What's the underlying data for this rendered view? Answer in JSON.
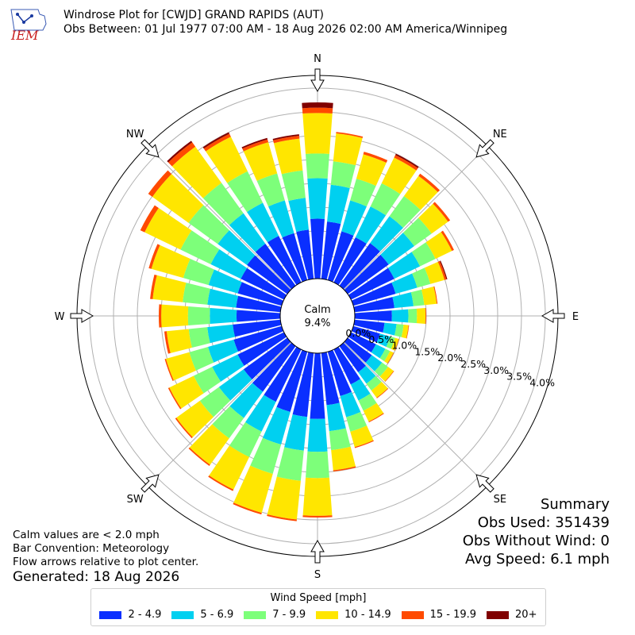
{
  "header": {
    "logo_text": "IEM",
    "title_line1": "Windrose Plot for [CWJD] GRAND RAPIDS (AUT)",
    "title_line2": "Obs Between: 01 Jul 1977 07:00 AM - 18 Aug 2026 02:00 AM America/Winnipeg"
  },
  "summary": {
    "heading": "Summary",
    "obs_used": "Obs Used: 351439",
    "obs_without_wind": "Obs Without Wind: 0",
    "avg_speed": "Avg Speed: 6.1 mph"
  },
  "notes": {
    "calm": "Calm values are < 2.0 mph",
    "convention": "Bar Convention: Meteorology",
    "arrows": "Flow arrows relative to plot center.",
    "generated": "Generated: 18 Aug 2026"
  },
  "chart_data": {
    "type": "windrose",
    "center_label": "Calm",
    "center_value": "9.4%",
    "directions": [
      "N",
      "NE",
      "E",
      "SE",
      "S",
      "SW",
      "W",
      "NW"
    ],
    "sector_angles_deg": [
      0,
      10,
      20,
      30,
      40,
      50,
      60,
      70,
      80,
      90,
      100,
      110,
      120,
      130,
      140,
      150,
      160,
      170,
      180,
      190,
      200,
      210,
      220,
      230,
      240,
      250,
      260,
      270,
      280,
      290,
      300,
      310,
      320,
      330,
      340,
      350
    ],
    "radial_ticks": [
      "0.0%",
      "0.5%",
      "1.0%",
      "1.5%",
      "2.0%",
      "2.5%",
      "3.0%",
      "3.5%",
      "4.0%"
    ],
    "radial_tick_values": [
      0.0,
      0.5,
      1.0,
      1.5,
      2.0,
      2.5,
      3.0,
      3.5,
      4.0
    ],
    "rmax": 4.0,
    "legend_title": "Wind Speed [mph]",
    "bins": [
      {
        "name": "2 - 4.9",
        "color": "#0a2fff"
      },
      {
        "name": "5 - 6.9",
        "color": "#00d0f0"
      },
      {
        "name": "7 - 9.9",
        "color": "#7dff7a"
      },
      {
        "name": "10 - 14.9",
        "color": "#ffe600"
      },
      {
        "name": "15 - 19.9",
        "color": "#ff4a00"
      },
      {
        "name": "20+",
        "color": "#800000"
      }
    ],
    "totals": [
      3.7,
      3.1,
      2.8,
      3.0,
      2.9,
      2.65,
      2.4,
      2.05,
      1.75,
      1.5,
      1.15,
      1.0,
      1.0,
      1.2,
      1.35,
      1.7,
      2.1,
      2.5,
      3.45,
      3.55,
      3.55,
      3.3,
      3.1,
      2.9,
      2.7,
      2.55,
      2.45,
      2.55,
      2.75,
      2.9,
      3.35,
      3.6,
      3.75,
      3.5,
      3.1,
      3.05
    ],
    "fractions": [
      [
        0.34,
        0.23,
        0.14,
        0.23,
        0.03,
        0.03
      ],
      [
        0.39,
        0.25,
        0.16,
        0.19,
        0.01,
        0.0
      ],
      [
        0.38,
        0.24,
        0.17,
        0.19,
        0.02,
        0.0
      ],
      [
        0.35,
        0.24,
        0.18,
        0.2,
        0.02,
        0.01
      ],
      [
        0.38,
        0.24,
        0.18,
        0.18,
        0.02,
        0.0
      ],
      [
        0.4,
        0.25,
        0.17,
        0.16,
        0.02,
        0.0
      ],
      [
        0.42,
        0.25,
        0.15,
        0.16,
        0.02,
        0.0
      ],
      [
        0.45,
        0.23,
        0.14,
        0.15,
        0.02,
        0.01
      ],
      [
        0.48,
        0.23,
        0.13,
        0.15,
        0.01,
        0.0
      ],
      [
        0.52,
        0.23,
        0.12,
        0.12,
        0.01,
        0.0
      ],
      [
        0.55,
        0.22,
        0.13,
        0.09,
        0.01,
        0.0
      ],
      [
        0.58,
        0.22,
        0.11,
        0.08,
        0.01,
        0.0
      ],
      [
        0.58,
        0.22,
        0.11,
        0.08,
        0.01,
        0.0
      ],
      [
        0.52,
        0.22,
        0.13,
        0.12,
        0.01,
        0.0
      ],
      [
        0.5,
        0.22,
        0.13,
        0.14,
        0.01,
        0.0
      ],
      [
        0.48,
        0.22,
        0.14,
        0.15,
        0.01,
        0.0
      ],
      [
        0.46,
        0.22,
        0.15,
        0.16,
        0.01,
        0.0
      ],
      [
        0.44,
        0.22,
        0.16,
        0.17,
        0.01,
        0.0
      ],
      [
        0.4,
        0.2,
        0.16,
        0.23,
        0.01,
        0.0
      ],
      [
        0.38,
        0.2,
        0.18,
        0.23,
        0.01,
        0.0
      ],
      [
        0.37,
        0.2,
        0.18,
        0.24,
        0.01,
        0.0
      ],
      [
        0.37,
        0.21,
        0.18,
        0.23,
        0.01,
        0.0
      ],
      [
        0.38,
        0.22,
        0.17,
        0.22,
        0.01,
        0.0
      ],
      [
        0.39,
        0.22,
        0.17,
        0.21,
        0.01,
        0.0
      ],
      [
        0.4,
        0.22,
        0.16,
        0.21,
        0.01,
        0.0
      ],
      [
        0.41,
        0.22,
        0.16,
        0.2,
        0.01,
        0.0
      ],
      [
        0.41,
        0.22,
        0.16,
        0.19,
        0.02,
        0.0
      ],
      [
        0.36,
        0.22,
        0.18,
        0.22,
        0.02,
        0.0
      ],
      [
        0.34,
        0.22,
        0.19,
        0.23,
        0.02,
        0.0
      ],
      [
        0.33,
        0.22,
        0.19,
        0.24,
        0.02,
        0.0
      ],
      [
        0.3,
        0.21,
        0.21,
        0.25,
        0.03,
        0.0
      ],
      [
        0.29,
        0.21,
        0.21,
        0.26,
        0.03,
        0.0
      ],
      [
        0.29,
        0.21,
        0.21,
        0.25,
        0.03,
        0.01
      ],
      [
        0.31,
        0.22,
        0.21,
        0.23,
        0.02,
        0.01
      ],
      [
        0.33,
        0.23,
        0.19,
        0.22,
        0.02,
        0.01
      ],
      [
        0.34,
        0.22,
        0.19,
        0.22,
        0.02,
        0.01
      ]
    ]
  }
}
